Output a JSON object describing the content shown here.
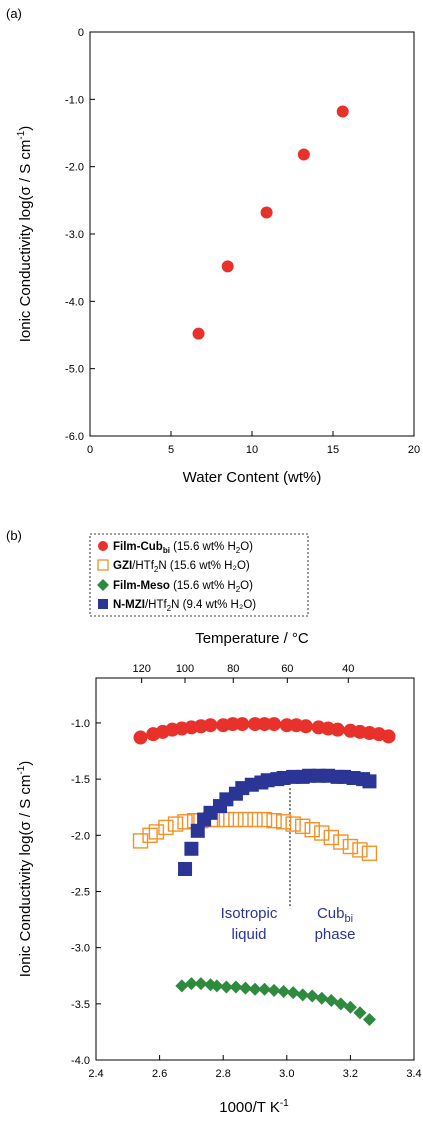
{
  "chart_data": [
    {
      "panel_label": "(a)",
      "type": "scatter",
      "xlabel": "Water Content (wt%)",
      "ylabel_main": "Ionic Conductivity log(σ / S cm",
      "ylabel_sup": "-1",
      "ylabel_close": ")",
      "xlim": [
        0,
        20
      ],
      "ylim": [
        -6.0,
        0
      ],
      "xticks": [
        "0",
        "5",
        "10",
        "15",
        "20"
      ],
      "yticks": [
        "0",
        "-1.0",
        "-2.0",
        "-3.0",
        "-4.0",
        "-5.0",
        "-6.0"
      ],
      "marker_color": "#e8312a",
      "x": [
        6.7,
        8.5,
        10.9,
        13.2,
        15.6
      ],
      "y": [
        -4.48,
        -3.48,
        -2.68,
        -1.82,
        -1.18
      ]
    },
    {
      "panel_label": "(b)",
      "type": "scatter",
      "xlabel_main": "1000/T K",
      "xlabel_sup": "-1",
      "ylabel_main": "Ionic Conductivity log(σ / S cm",
      "ylabel_sup": "-1",
      "ylabel_close": ")",
      "top_axis_label": "Temperature / °C",
      "top_ticks": [
        "120",
        "100",
        "80",
        "60",
        "40"
      ],
      "xlim": [
        2.4,
        3.4
      ],
      "ylim": [
        -4.0,
        -0.6
      ],
      "xticks": [
        "2.4",
        "2.6",
        "2.8",
        "3.0",
        "3.2",
        "3.4"
      ],
      "yticks": [
        "-1.0",
        "-1.5",
        "-2.0",
        "-2.5",
        "-3.0",
        "-3.5",
        "-4.0"
      ],
      "annotations": {
        "isotropic_line1": "Isotropic",
        "isotropic_line2": "liquid",
        "cub_main": "Cub",
        "cub_sub": "bi",
        "cub_line2": "phase",
        "divider_x": 3.01
      },
      "legend": [
        {
          "bold": "Film-Cub",
          "bold_sub": "bi",
          "rest": " (15.6 wt% H",
          "h2o_sub": "2",
          "tail": "O)"
        },
        {
          "bold": "GZI",
          "bold_sub": "",
          "rest": "/HTf",
          "h2o_sub": "2",
          "tail": "N (15.6 wt% H₂O)"
        },
        {
          "bold": "Film-Meso",
          "bold_sub": "",
          "rest": " (15.6 wt% H",
          "h2o_sub": "2",
          "tail": "O)"
        },
        {
          "bold": "N-MZI",
          "bold_sub": "",
          "rest": "/HTf",
          "h2o_sub": "2",
          "tail": "N (9.4 wt% H₂O)"
        }
      ],
      "series": [
        {
          "marker": "circle",
          "color": "#e8312a",
          "x": [
            2.54,
            2.58,
            2.61,
            2.64,
            2.67,
            2.7,
            2.73,
            2.76,
            2.8,
            2.83,
            2.86,
            2.9,
            2.93,
            2.96,
            3.0,
            3.03,
            3.06,
            3.1,
            3.13,
            3.16,
            3.2,
            3.23,
            3.26,
            3.29,
            3.32
          ],
          "y": [
            -1.13,
            -1.1,
            -1.08,
            -1.06,
            -1.05,
            -1.04,
            -1.03,
            -1.02,
            -1.02,
            -1.01,
            -1.01,
            -1.01,
            -1.01,
            -1.01,
            -1.02,
            -1.02,
            -1.03,
            -1.04,
            -1.05,
            -1.06,
            -1.07,
            -1.08,
            -1.09,
            -1.1,
            -1.12
          ]
        },
        {
          "marker": "open-square",
          "color": "#f0922a",
          "x": [
            2.54,
            2.57,
            2.59,
            2.62,
            2.65,
            2.68,
            2.71,
            2.73,
            2.76,
            2.78,
            2.81,
            2.84,
            2.87,
            2.9,
            2.93,
            2.96,
            2.99,
            3.02,
            3.05,
            3.08,
            3.11,
            3.14,
            3.17,
            3.2,
            3.23,
            3.26
          ],
          "y": [
            -2.05,
            -2.0,
            -1.97,
            -1.93,
            -1.9,
            -1.88,
            -1.87,
            -1.87,
            -1.86,
            -1.86,
            -1.86,
            -1.86,
            -1.86,
            -1.86,
            -1.86,
            -1.87,
            -1.88,
            -1.9,
            -1.92,
            -1.95,
            -1.98,
            -2.02,
            -2.06,
            -2.1,
            -2.13,
            -2.16
          ]
        },
        {
          "marker": "diamond",
          "color": "#2e8b3e",
          "x": [
            2.67,
            2.7,
            2.73,
            2.76,
            2.78,
            2.81,
            2.84,
            2.87,
            2.9,
            2.93,
            2.96,
            2.99,
            3.02,
            3.05,
            3.08,
            3.11,
            3.14,
            3.17,
            3.2,
            3.23,
            3.26
          ],
          "y": [
            -3.34,
            -3.32,
            -3.32,
            -3.33,
            -3.34,
            -3.35,
            -3.35,
            -3.36,
            -3.37,
            -3.37,
            -3.38,
            -3.39,
            -3.4,
            -3.42,
            -3.43,
            -3.45,
            -3.47,
            -3.5,
            -3.53,
            -3.58,
            -3.64
          ]
        },
        {
          "marker": "square",
          "color": "#2b3595",
          "x": [
            2.68,
            2.7,
            2.72,
            2.74,
            2.76,
            2.79,
            2.81,
            2.84,
            2.86,
            2.89,
            2.92,
            2.94,
            2.97,
            2.99,
            3.02,
            3.05,
            3.07,
            3.1,
            3.13,
            3.16,
            3.18,
            3.21,
            3.24,
            3.26
          ],
          "y": [
            -2.3,
            -2.12,
            -1.96,
            -1.86,
            -1.8,
            -1.74,
            -1.68,
            -1.63,
            -1.58,
            -1.55,
            -1.53,
            -1.51,
            -1.5,
            -1.49,
            -1.48,
            -1.48,
            -1.47,
            -1.47,
            -1.47,
            -1.48,
            -1.48,
            -1.49,
            -1.5,
            -1.52
          ]
        }
      ]
    }
  ]
}
